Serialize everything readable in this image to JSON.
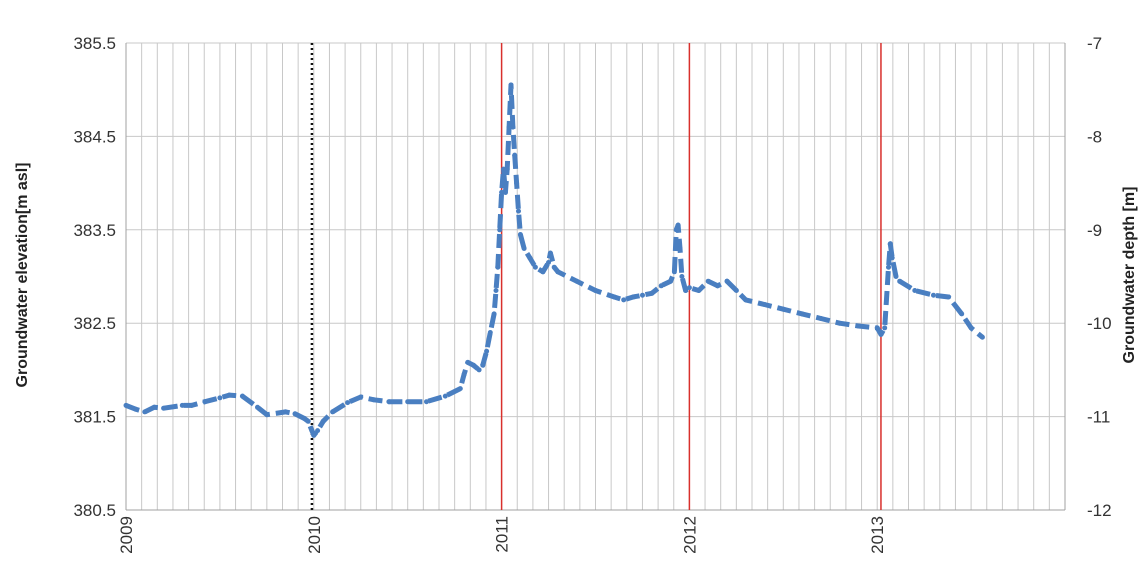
{
  "chart_data": {
    "type": "line",
    "title": "",
    "xlabel": "",
    "ylabel": "Groundwater elevation[m asl]",
    "y2label": "Groundwater depth [m]",
    "xlim": [
      2009,
      2014
    ],
    "ylim": [
      380.5,
      385.5
    ],
    "y2lim": [
      -12,
      -7
    ],
    "x_tick_labels": [
      "2009",
      "2010",
      "2011",
      "2012",
      "2013"
    ],
    "y_tick_labels": [
      "380.5",
      "381.5",
      "382.5",
      "383.5",
      "384.5",
      "385.5"
    ],
    "y2_tick_labels": [
      "-12",
      "-11",
      "-10",
      "-9",
      "-8",
      "-7"
    ],
    "grid": true,
    "legend": "none",
    "colors": {
      "series": "#4a7fc1",
      "event_lines": "#d9302c",
      "dotted_line": "#111111",
      "grid": "#c8c8c8"
    },
    "vertical_markers": [
      {
        "x": 2009.99,
        "style": "dotted"
      },
      {
        "x": 2011.0,
        "style": "solid"
      },
      {
        "x": 2012.0,
        "style": "solid"
      },
      {
        "x": 2013.02,
        "style": "solid"
      }
    ],
    "series": [
      {
        "values": [
          [
            2009.0,
            381.62
          ],
          [
            2009.05,
            381.58
          ],
          [
            2009.1,
            381.55
          ],
          [
            2009.15,
            381.6
          ],
          [
            2009.2,
            381.59
          ],
          [
            2009.3,
            381.62
          ],
          [
            2009.35,
            381.62
          ],
          [
            2009.42,
            381.66
          ],
          [
            2009.5,
            381.7
          ],
          [
            2009.55,
            381.73
          ],
          [
            2009.62,
            381.72
          ],
          [
            2009.7,
            381.6
          ],
          [
            2009.75,
            381.52
          ],
          [
            2009.85,
            381.55
          ],
          [
            2009.9,
            381.53
          ],
          [
            2009.95,
            381.48
          ],
          [
            2009.97,
            381.45
          ],
          [
            2009.99,
            381.35
          ],
          [
            2010.0,
            381.3
          ],
          [
            2010.02,
            381.35
          ],
          [
            2010.05,
            381.45
          ],
          [
            2010.1,
            381.55
          ],
          [
            2010.18,
            381.65
          ],
          [
            2010.25,
            381.71
          ],
          [
            2010.32,
            381.68
          ],
          [
            2010.4,
            381.66
          ],
          [
            2010.5,
            381.66
          ],
          [
            2010.6,
            381.66
          ],
          [
            2010.7,
            381.72
          ],
          [
            2010.78,
            381.8
          ],
          [
            2010.8,
            381.95
          ],
          [
            2010.82,
            382.08
          ],
          [
            2010.85,
            382.05
          ],
          [
            2010.88,
            382.0
          ],
          [
            2010.9,
            382.05
          ],
          [
            2010.92,
            382.2
          ],
          [
            2010.94,
            382.4
          ],
          [
            2010.96,
            382.6
          ],
          [
            2010.97,
            382.85
          ],
          [
            2010.98,
            383.1
          ],
          [
            2010.99,
            383.5
          ],
          [
            2011.0,
            383.9
          ],
          [
            2011.01,
            384.15
          ],
          [
            2011.02,
            383.9
          ],
          [
            2011.03,
            384.15
          ],
          [
            2011.04,
            384.6
          ],
          [
            2011.05,
            385.05
          ],
          [
            2011.06,
            384.6
          ],
          [
            2011.07,
            384.3
          ],
          [
            2011.08,
            384.0
          ],
          [
            2011.09,
            383.7
          ],
          [
            2011.1,
            383.45
          ],
          [
            2011.12,
            383.3
          ],
          [
            2011.15,
            383.2
          ],
          [
            2011.18,
            383.1
          ],
          [
            2011.22,
            383.05
          ],
          [
            2011.25,
            383.15
          ],
          [
            2011.26,
            383.25
          ],
          [
            2011.28,
            383.1
          ],
          [
            2011.3,
            383.05
          ],
          [
            2011.4,
            382.95
          ],
          [
            2011.5,
            382.85
          ],
          [
            2011.6,
            382.78
          ],
          [
            2011.65,
            382.75
          ],
          [
            2011.7,
            382.78
          ],
          [
            2011.75,
            382.8
          ],
          [
            2011.8,
            382.82
          ],
          [
            2011.85,
            382.9
          ],
          [
            2011.9,
            382.95
          ],
          [
            2011.92,
            383.05
          ],
          [
            2011.93,
            383.5
          ],
          [
            2011.94,
            383.55
          ],
          [
            2011.95,
            383.3
          ],
          [
            2011.96,
            383.0
          ],
          [
            2011.98,
            382.85
          ],
          [
            2012.0,
            382.88
          ],
          [
            2012.05,
            382.85
          ],
          [
            2012.1,
            382.95
          ],
          [
            2012.15,
            382.9
          ],
          [
            2012.2,
            382.95
          ],
          [
            2012.25,
            382.85
          ],
          [
            2012.3,
            382.75
          ],
          [
            2012.4,
            382.7
          ],
          [
            2012.5,
            382.65
          ],
          [
            2012.6,
            382.6
          ],
          [
            2012.7,
            382.55
          ],
          [
            2012.8,
            382.5
          ],
          [
            2012.9,
            382.47
          ],
          [
            2013.0,
            382.45
          ],
          [
            2013.02,
            382.38
          ],
          [
            2013.04,
            382.45
          ],
          [
            2013.06,
            383.1
          ],
          [
            2013.07,
            383.35
          ],
          [
            2013.08,
            383.2
          ],
          [
            2013.1,
            383.0
          ],
          [
            2013.12,
            382.95
          ],
          [
            2013.2,
            382.85
          ],
          [
            2013.3,
            382.8
          ],
          [
            2013.38,
            382.78
          ],
          [
            2013.45,
            382.6
          ],
          [
            2013.5,
            382.45
          ],
          [
            2013.56,
            382.35
          ]
        ]
      }
    ]
  }
}
